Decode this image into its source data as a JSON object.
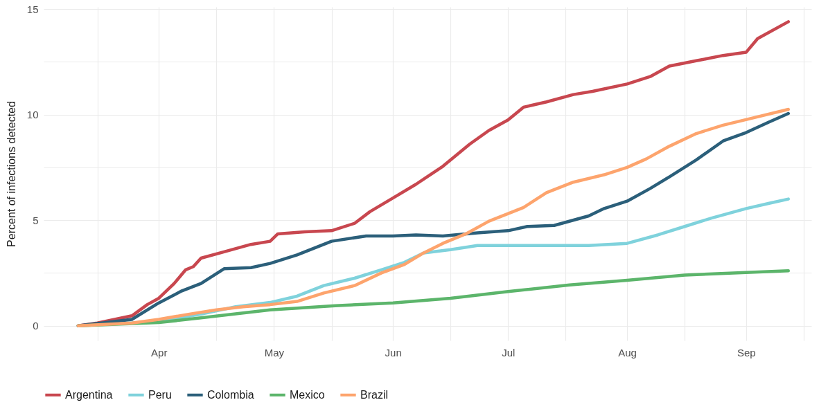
{
  "chart_data": {
    "type": "line",
    "ylabel": "Percent of infections detected",
    "xlim": [
      "--03-02",
      "--09-18"
    ],
    "ylim": [
      -0.7,
      15.1
    ],
    "xticks": [
      {
        "value": "--03-16",
        "label": null
      },
      {
        "value": "--04-01",
        "label": "Apr"
      },
      {
        "value": "--04-16",
        "label": null
      },
      {
        "value": "--05-01",
        "label": "May"
      },
      {
        "value": "--05-16",
        "label": null
      },
      {
        "value": "--06-01",
        "label": "Jun"
      },
      {
        "value": "--06-16",
        "label": null
      },
      {
        "value": "--07-01",
        "label": "Jul"
      },
      {
        "value": "--07-16",
        "label": null
      },
      {
        "value": "--08-01",
        "label": "Aug"
      },
      {
        "value": "--08-16",
        "label": null
      },
      {
        "value": "--09-01",
        "label": "Sep"
      },
      {
        "value": "--09-16",
        "label": null
      }
    ],
    "yticks": [
      0,
      {
        "value": 2.5,
        "label": null
      },
      5,
      {
        "value": 7.5,
        "label": null
      },
      10,
      {
        "value": 12.5,
        "label": null
      },
      15
    ],
    "grid": true,
    "legend": "bottom",
    "line_style": "solid",
    "marker": "none",
    "series": [
      {
        "name": "Argentina",
        "color": "#c8474f",
        "x": [
          "--03-11",
          "--03-16",
          "--03-25",
          "--03-29",
          "--04-01",
          "--04-05",
          "--04-08",
          "--04-10",
          "--04-12",
          "--04-18",
          "--04-25",
          "--04-30",
          "--05-02",
          "--05-09",
          "--05-16",
          "--05-22",
          "--05-26",
          "--06-01",
          "--06-07",
          "--06-14",
          "--06-21",
          "--06-26",
          "--07-01",
          "--07-05",
          "--07-11",
          "--07-18",
          "--07-23",
          "--08-01",
          "--08-07",
          "--08-12",
          "--08-19",
          "--08-26",
          "--09-01",
          "--09-04",
          "--09-12"
        ],
        "values": [
          0,
          0.13,
          0.47,
          1.0,
          1.3,
          2.0,
          2.65,
          2.8,
          3.2,
          3.5,
          3.85,
          4.0,
          4.35,
          4.45,
          4.5,
          4.85,
          5.4,
          6.05,
          6.7,
          7.55,
          8.6,
          9.25,
          9.75,
          10.35,
          10.6,
          10.95,
          11.1,
          11.45,
          11.8,
          12.3,
          12.55,
          12.8,
          12.95,
          13.6,
          14.4
        ]
      },
      {
        "name": "Peru",
        "color": "#7fd2dc",
        "x": [
          "--03-11",
          "--04-01",
          "--04-12",
          "--04-21",
          "--04-30",
          "--05-07",
          "--05-14",
          "--05-22",
          "--05-29",
          "--06-04",
          "--06-09",
          "--06-16",
          "--06-23",
          "--07-01",
          "--07-11",
          "--07-22",
          "--08-01",
          "--08-09",
          "--08-16",
          "--08-23",
          "--09-01",
          "--09-07",
          "--09-12"
        ],
        "values": [
          0,
          0.2,
          0.55,
          0.9,
          1.1,
          1.4,
          1.9,
          2.25,
          2.65,
          3.0,
          3.45,
          3.6,
          3.8,
          3.8,
          3.8,
          3.8,
          3.9,
          4.3,
          4.7,
          5.1,
          5.55,
          5.8,
          6.0
        ]
      },
      {
        "name": "Colombia",
        "color": "#2b5f7a",
        "x": [
          "--03-11",
          "--03-25",
          "--04-01",
          "--04-07",
          "--04-12",
          "--04-18",
          "--04-25",
          "--04-30",
          "--05-07",
          "--05-16",
          "--05-25",
          "--06-01",
          "--06-07",
          "--06-14",
          "--06-23",
          "--07-01",
          "--07-06",
          "--07-13",
          "--07-22",
          "--07-26",
          "--08-01",
          "--08-07",
          "--08-12",
          "--08-19",
          "--08-26",
          "--09-01",
          "--09-07",
          "--09-12"
        ],
        "values": [
          0,
          0.3,
          1.08,
          1.65,
          2.0,
          2.7,
          2.75,
          2.95,
          3.35,
          4.0,
          4.25,
          4.25,
          4.3,
          4.25,
          4.4,
          4.5,
          4.7,
          4.75,
          5.2,
          5.55,
          5.9,
          6.5,
          7.05,
          7.85,
          8.75,
          9.15,
          9.65,
          10.05
        ]
      },
      {
        "name": "Mexico",
        "color": "#5cb56b",
        "x": [
          "--03-11",
          "--04-01",
          "--04-12",
          "--04-30",
          "--05-17",
          "--06-01",
          "--06-16",
          "--07-01",
          "--07-17",
          "--08-01",
          "--08-16",
          "--09-01",
          "--09-12"
        ],
        "values": [
          0,
          0.15,
          0.37,
          0.75,
          0.95,
          1.08,
          1.3,
          1.62,
          1.93,
          2.15,
          2.4,
          2.52,
          2.6
        ]
      },
      {
        "name": "Brazil",
        "color": "#fda46d",
        "x": [
          "--03-11",
          "--03-25",
          "--04-01",
          "--04-09",
          "--04-16",
          "--04-23",
          "--04-30",
          "--05-07",
          "--05-14",
          "--05-22",
          "--05-29",
          "--06-04",
          "--06-09",
          "--06-14",
          "--06-20",
          "--06-26",
          "--07-05",
          "--07-11",
          "--07-18",
          "--07-26",
          "--08-01",
          "--08-06",
          "--08-12",
          "--08-19",
          "--08-26",
          "--09-03",
          "--09-12"
        ],
        "values": [
          0,
          0.13,
          0.3,
          0.55,
          0.75,
          0.9,
          1.0,
          1.15,
          1.55,
          1.9,
          2.5,
          2.9,
          3.45,
          3.9,
          4.35,
          4.95,
          5.6,
          6.3,
          6.8,
          7.15,
          7.5,
          7.9,
          8.5,
          9.1,
          9.5,
          9.85,
          10.25
        ]
      }
    ]
  }
}
